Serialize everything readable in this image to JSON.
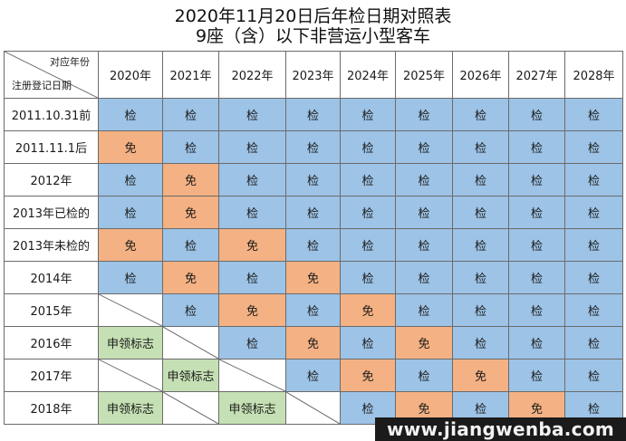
{
  "title": {
    "line1": "2020年11月20日后年检日期对照表",
    "line2": "9座（含）以下非营运小型客车"
  },
  "corner": {
    "top_label": "对应年份",
    "bottom_label": "注册登记日期"
  },
  "years": [
    "2020年",
    "2021年",
    "2022年",
    "2023年",
    "2024年",
    "2025年",
    "2026年",
    "2027年",
    "2028年"
  ],
  "legend_values": {
    "check": "检",
    "exempt": "免",
    "apply": "申领标志"
  },
  "colors": {
    "check": "#9dc3e6",
    "exempt": "#f4b183",
    "apply": "#c5e0b4",
    "blank": "#ffffff"
  },
  "rows": [
    {
      "label": "2011.10.31前",
      "cells": [
        "检",
        "检",
        "检",
        "检",
        "检",
        "检",
        "检",
        "检",
        "检"
      ]
    },
    {
      "label": "2011.11.1后",
      "cells": [
        "免",
        "检",
        "检",
        "检",
        "检",
        "检",
        "检",
        "检",
        "检"
      ]
    },
    {
      "label": "2012年",
      "cells": [
        "检",
        "免",
        "检",
        "检",
        "检",
        "检",
        "检",
        "检",
        "检"
      ]
    },
    {
      "label": "2013年已检的",
      "cells": [
        "检",
        "免",
        "检",
        "检",
        "检",
        "检",
        "检",
        "检",
        "检"
      ]
    },
    {
      "label": "2013年未检的",
      "cells": [
        "免",
        "检",
        "免",
        "检",
        "检",
        "检",
        "检",
        "检",
        "检"
      ]
    },
    {
      "label": "2014年",
      "cells": [
        "检",
        "免",
        "检",
        "免",
        "检",
        "检",
        "检",
        "检",
        "检"
      ]
    },
    {
      "label": "2015年",
      "cells": [
        "",
        "检",
        "免",
        "检",
        "免",
        "检",
        "检",
        "检",
        "检"
      ]
    },
    {
      "label": "2016年",
      "cells": [
        "申领标志",
        "",
        "检",
        "免",
        "检",
        "免",
        "检",
        "检",
        "检"
      ]
    },
    {
      "label": "2017年",
      "cells": [
        "",
        "申领标志",
        "",
        "检",
        "免",
        "检",
        "免",
        "检",
        "检"
      ]
    },
    {
      "label": "2018年",
      "cells": [
        "申领标志",
        "",
        "申领标志",
        "",
        "检",
        "免",
        "检",
        "免",
        "检"
      ]
    }
  ],
  "watermark": "www.jiangwenba.com"
}
